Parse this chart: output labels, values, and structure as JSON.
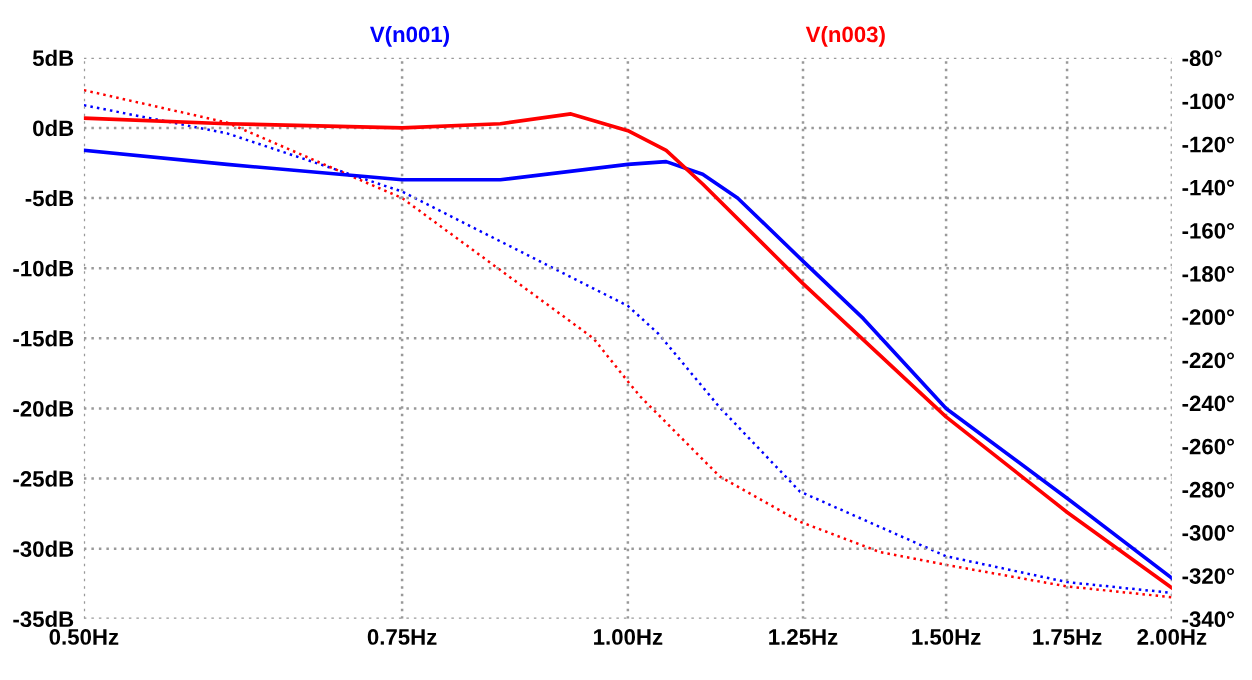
{
  "chart_data": {
    "type": "line",
    "log": "x",
    "grid": true,
    "legend": "top",
    "line_style": "solid",
    "marker": "none",
    "xlim": [
      0.5,
      2.0
    ],
    "xticks": [
      {
        "value": 0.5,
        "label": "0.50Hz"
      },
      {
        "value": 0.75,
        "label": "0.75Hz"
      },
      {
        "value": 1.0,
        "label": "1.00Hz"
      },
      {
        "value": 1.25,
        "label": "1.25Hz"
      },
      {
        "value": 1.5,
        "label": "1.50Hz"
      },
      {
        "value": 1.75,
        "label": "1.75Hz"
      },
      {
        "value": 2.0,
        "label": "2.00Hz"
      }
    ],
    "ylim": [
      -35,
      5
    ],
    "yticks": [
      {
        "value": 5,
        "label": "5dB"
      },
      {
        "value": 0,
        "label": "0dB"
      },
      {
        "value": -5,
        "label": "-5dB"
      },
      {
        "value": -10,
        "label": "-10dB"
      },
      {
        "value": -15,
        "label": "-15dB"
      },
      {
        "value": -20,
        "label": "-20dB"
      },
      {
        "value": -25,
        "label": "-25dB"
      },
      {
        "value": -30,
        "label": "-30dB"
      },
      {
        "value": -35,
        "label": "-35dB"
      }
    ],
    "y2lim": [
      -340,
      -80
    ],
    "y2ticks": [
      {
        "value": -80,
        "label": "-80°"
      },
      {
        "value": -100,
        "label": "-100°"
      },
      {
        "value": -120,
        "label": "-120°"
      },
      {
        "value": -140,
        "label": "-140°"
      },
      {
        "value": -160,
        "label": "-160°"
      },
      {
        "value": -180,
        "label": "-180°"
      },
      {
        "value": -200,
        "label": "-200°"
      },
      {
        "value": -220,
        "label": "-220°"
      },
      {
        "value": -240,
        "label": "-240°"
      },
      {
        "value": -260,
        "label": "-260°"
      },
      {
        "value": -280,
        "label": "-280°"
      },
      {
        "value": -300,
        "label": "-300°"
      },
      {
        "value": -320,
        "label": "-320°"
      },
      {
        "value": -340,
        "label": "-340°"
      }
    ],
    "series": [
      {
        "name": "V(n001)",
        "color": "#0000ff",
        "x": [
          0.5,
          0.6,
          0.75,
          0.85,
          1.0,
          1.05,
          1.1,
          1.15,
          1.25,
          1.35,
          1.5,
          1.75,
          2.0
        ],
        "values": [
          -1.6,
          -2.6,
          -3.7,
          -3.7,
          -2.6,
          -2.4,
          -3.3,
          -5.0,
          -9.5,
          -13.6,
          -20.0,
          -26.4,
          -32.1
        ]
      },
      {
        "name": "V(n003)",
        "color": "#ff0000",
        "x": [
          0.5,
          0.6,
          0.75,
          0.85,
          0.93,
          1.0,
          1.05,
          1.1,
          1.25,
          1.5,
          1.75,
          2.0
        ],
        "values": [
          0.7,
          0.3,
          0.0,
          0.3,
          1.0,
          -0.2,
          -1.6,
          -4.0,
          -11.1,
          -20.6,
          -27.4,
          -32.8
        ]
      },
      {
        "color": "#0000ff",
        "axis": "y2",
        "line_style": "dotted",
        "x": [
          0.5,
          0.6,
          0.75,
          1.0,
          1.04,
          1.124,
          1.245,
          1.5,
          1.75,
          2.0
        ],
        "values": [
          -102,
          -115,
          -142,
          -195,
          -208,
          -242,
          -281,
          -311,
          -323,
          -328
        ]
      },
      {
        "color": "#ff0000",
        "axis": "y2",
        "line_style": "dotted",
        "x": [
          0.5,
          0.6,
          0.75,
          0.957,
          1.0,
          1.016,
          1.124,
          1.245,
          1.378,
          1.5,
          1.75,
          2.0
        ],
        "values": [
          -95,
          -110,
          -145,
          -210,
          -230,
          -237,
          -274,
          -295,
          -309,
          -315,
          -325,
          -330
        ]
      }
    ]
  }
}
